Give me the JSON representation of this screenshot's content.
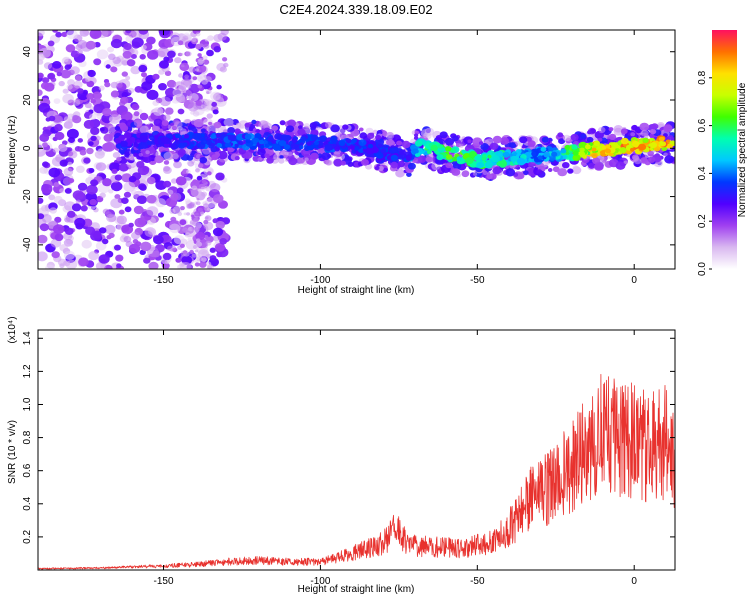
{
  "title": "C2E4.2024.339.18.09.E02",
  "colors": {
    "snr_line": "#e8322e",
    "colorbar": [
      "#ffffff",
      "#d9b8f0",
      "#a040f0",
      "#5000ff",
      "#0038ff",
      "#00c8ff",
      "#00ffb0",
      "#40ff00",
      "#c8ff00",
      "#ffe000",
      "#ff7000",
      "#ff1060"
    ]
  },
  "chart_data": [
    {
      "type": "heatmap",
      "name": "spectrogram",
      "xlabel": "Height of straight line (km)",
      "ylabel": "Frequency (Hz)",
      "xlim": [
        -190,
        13
      ],
      "ylim": [
        -50,
        49
      ],
      "xticks": [
        -150,
        -100,
        -50,
        0
      ],
      "yticks": [
        -40,
        -20,
        0,
        20,
        40
      ],
      "colorbar": {
        "label": "Normalized spectral amplitude",
        "range": [
          0,
          1
        ],
        "ticks": [
          0.0,
          0.2,
          0.4,
          0.6,
          0.8
        ]
      },
      "ridge": {
        "x": [
          -165,
          -150,
          -135,
          -120,
          -100,
          -90,
          -80,
          -72,
          -68,
          -60,
          -50,
          -40,
          -30,
          -25,
          -20,
          -10,
          0,
          13
        ],
        "freq": [
          3,
          3,
          3,
          3,
          2,
          1,
          -1,
          -4,
          1,
          -2,
          -5,
          -4,
          -3,
          -2,
          -2,
          0,
          1,
          2
        ],
        "amplitude": [
          0.32,
          0.34,
          0.38,
          0.4,
          0.38,
          0.36,
          0.36,
          0.36,
          0.55,
          0.65,
          0.62,
          0.55,
          0.45,
          0.5,
          0.65,
          0.9,
          0.9,
          0.9
        ]
      }
    },
    {
      "type": "line",
      "name": "snr",
      "xlabel": "Height of straight line (km)",
      "ylabel": "SNR (10 * v/v)",
      "scale_label": "(x10⁴)",
      "xlim": [
        -190,
        13
      ],
      "ylim": [
        0,
        1.45
      ],
      "xticks": [
        -150,
        -100,
        -50,
        0
      ],
      "yticks": [
        0.2,
        0.4,
        0.6,
        0.8,
        1.0,
        1.2,
        1.4
      ],
      "envelope": {
        "x": [
          -190,
          -170,
          -150,
          -140,
          -130,
          -120,
          -110,
          -100,
          -90,
          -80,
          -76,
          -72,
          -65,
          -55,
          -45,
          -38,
          -35,
          -30,
          -25,
          -20,
          -15,
          -10,
          -5,
          0,
          5,
          10,
          13
        ],
        "y": [
          0.01,
          0.015,
          0.03,
          0.04,
          0.06,
          0.07,
          0.06,
          0.06,
          0.12,
          0.2,
          0.3,
          0.18,
          0.17,
          0.16,
          0.2,
          0.35,
          0.5,
          0.55,
          0.65,
          0.75,
          0.9,
          1.0,
          0.95,
          0.95,
          0.9,
          0.95,
          0.8
        ]
      }
    }
  ]
}
